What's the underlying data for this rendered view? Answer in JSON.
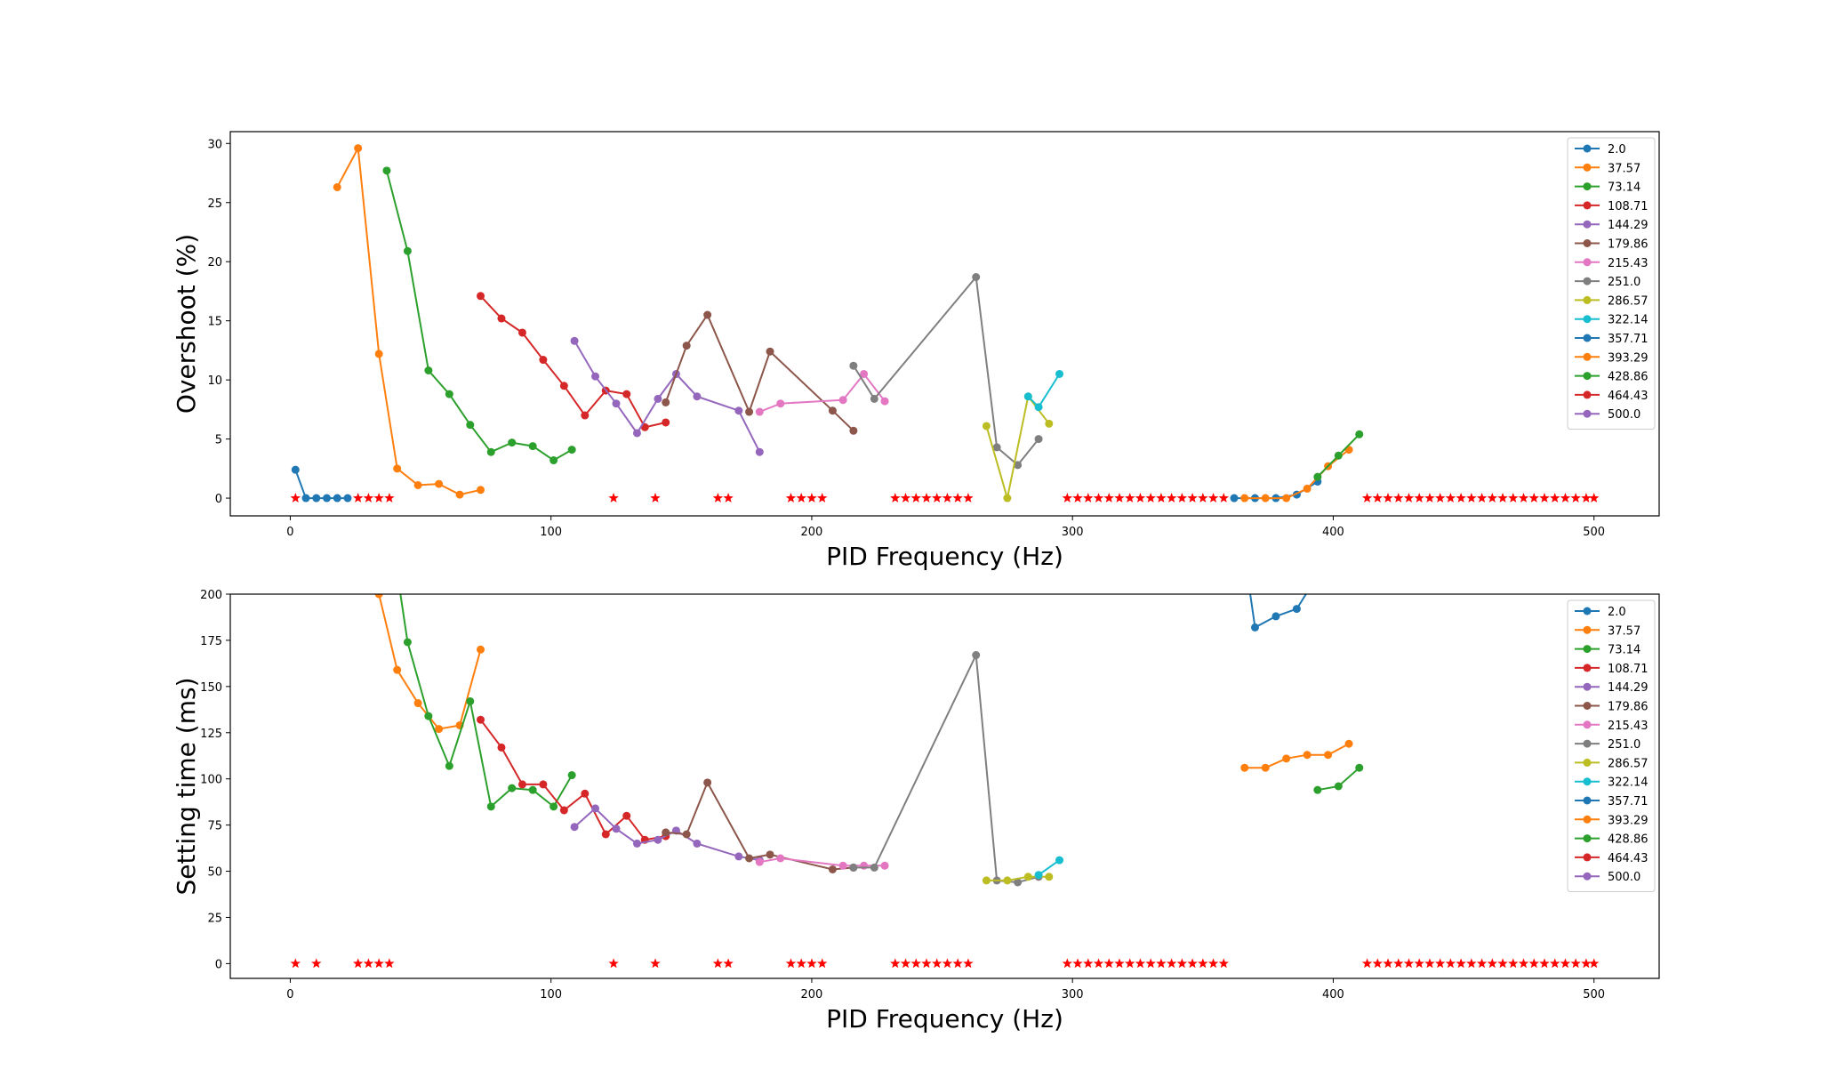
{
  "colors": [
    "#1f77b4",
    "#ff7f0e",
    "#2ca02c",
    "#d62728",
    "#9467bd",
    "#8c564b",
    "#e377c2",
    "#7f7f7f",
    "#bcbd22",
    "#17becf"
  ],
  "star_color": "#ff0000",
  "chart_data": [
    {
      "type": "line",
      "xlabel": "PID Frequency (Hz)",
      "ylabel": "Overshoot (%)",
      "xlim": [
        -23,
        525
      ],
      "ylim": [
        -1.5,
        31
      ],
      "xticks": [
        0,
        100,
        200,
        300,
        400,
        500
      ],
      "yticks": [
        0,
        5,
        10,
        15,
        20,
        25,
        30
      ],
      "legend": "top-right",
      "series": [
        {
          "name": "2.0",
          "points": [
            [
              2,
              2.4
            ],
            [
              6,
              0
            ],
            [
              10,
              0
            ],
            [
              14,
              0
            ],
            [
              18,
              0
            ],
            [
              22,
              0
            ]
          ]
        },
        {
          "name": "37.57",
          "points": [
            [
              18,
              26.3
            ],
            [
              26,
              29.6
            ],
            [
              34,
              12.2
            ],
            [
              41,
              2.5
            ],
            [
              49,
              1.1
            ],
            [
              57,
              1.2
            ],
            [
              65,
              0.3
            ],
            [
              73,
              0.7
            ]
          ]
        },
        {
          "name": "73.14",
          "points": [
            [
              37,
              27.7
            ],
            [
              45,
              20.9
            ],
            [
              53,
              10.8
            ],
            [
              61,
              8.8
            ],
            [
              69,
              6.2
            ],
            [
              77,
              3.9
            ],
            [
              85,
              4.7
            ],
            [
              93,
              4.4
            ],
            [
              101,
              3.2
            ],
            [
              108,
              4.1
            ]
          ]
        },
        {
          "name": "108.71",
          "points": [
            [
              73,
              17.1
            ],
            [
              81,
              15.2
            ],
            [
              89,
              14.0
            ],
            [
              97,
              11.7
            ],
            [
              105,
              9.5
            ],
            [
              113,
              7.0
            ],
            [
              121,
              9.1
            ],
            [
              129,
              8.8
            ],
            [
              136,
              6.0
            ],
            [
              144,
              6.4
            ]
          ]
        },
        {
          "name": "144.29",
          "points": [
            [
              109,
              13.3
            ],
            [
              117,
              10.3
            ],
            [
              125,
              8.0
            ],
            [
              133,
              5.5
            ],
            [
              141,
              8.4
            ],
            [
              148,
              10.5
            ],
            [
              156,
              8.6
            ],
            [
              172,
              7.4
            ],
            [
              180,
              3.9
            ]
          ]
        },
        {
          "name": "179.86",
          "points": [
            [
              144,
              8.1
            ],
            [
              152,
              12.9
            ],
            [
              160,
              15.5
            ],
            [
              176,
              7.3
            ],
            [
              184,
              12.4
            ],
            [
              208,
              7.4
            ],
            [
              216,
              5.7
            ]
          ]
        },
        {
          "name": "215.43",
          "points": [
            [
              180,
              7.3
            ],
            [
              188,
              8.0
            ],
            [
              212,
              8.3
            ],
            [
              220,
              10.5
            ],
            [
              228,
              8.2
            ]
          ]
        },
        {
          "name": "251.0",
          "points": [
            [
              216,
              11.2
            ],
            [
              224,
              8.4
            ],
            [
              263,
              18.7
            ],
            [
              271,
              4.3
            ],
            [
              279,
              2.8
            ],
            [
              287,
              5.0
            ]
          ]
        },
        {
          "name": "286.57",
          "points": [
            [
              267,
              6.1
            ],
            [
              275,
              0
            ],
            [
              283,
              8.6
            ],
            [
              291,
              6.3
            ]
          ]
        },
        {
          "name": "322.14",
          "points": [
            [
              283,
              8.6
            ],
            [
              287,
              7.7
            ],
            [
              295,
              10.5
            ]
          ]
        },
        {
          "name": "357.71",
          "points": [
            [
              362,
              0
            ],
            [
              370,
              0
            ],
            [
              378,
              0
            ],
            [
              386,
              0.3
            ],
            [
              394,
              1.4
            ]
          ]
        },
        {
          "name": "393.29",
          "points": [
            [
              366,
              0
            ],
            [
              374,
              0
            ],
            [
              382,
              0
            ],
            [
              390,
              0.8
            ],
            [
              398,
              2.7
            ],
            [
              406,
              4.1
            ]
          ]
        },
        {
          "name": "428.86",
          "points": [
            [
              394,
              1.8
            ],
            [
              402,
              3.6
            ],
            [
              410,
              5.4
            ]
          ]
        },
        {
          "name": "464.43",
          "points": []
        },
        {
          "name": "500.0",
          "points": []
        }
      ],
      "stars": [
        2,
        26,
        30,
        34,
        38,
        124,
        140,
        164,
        168,
        192,
        196,
        200,
        204,
        232,
        236,
        240,
        244,
        248,
        252,
        256,
        260,
        298,
        302,
        306,
        310,
        314,
        318,
        322,
        326,
        330,
        334,
        338,
        342,
        346,
        350,
        354,
        358,
        413,
        417,
        421,
        425,
        429,
        433,
        437,
        441,
        445,
        449,
        453,
        457,
        461,
        465,
        469,
        473,
        477,
        481,
        485,
        489,
        493,
        497,
        500
      ]
    },
    {
      "type": "line",
      "xlabel": "PID Frequency (Hz)",
      "ylabel": "Setting time (ms)",
      "xlim": [
        -23,
        525
      ],
      "ylim": [
        -8,
        200
      ],
      "xticks": [
        0,
        100,
        200,
        300,
        400,
        500
      ],
      "yticks": [
        0,
        25,
        50,
        75,
        100,
        125,
        150,
        175,
        200
      ],
      "legend": "top-right",
      "series": [
        {
          "name": "2.0",
          "points": []
        },
        {
          "name": "37.57",
          "points": [
            [
              26,
              250
            ],
            [
              34,
              200
            ],
            [
              41,
              159
            ],
            [
              49,
              141
            ],
            [
              57,
              127
            ],
            [
              65,
              129
            ],
            [
              73,
              170
            ]
          ]
        },
        {
          "name": "73.14",
          "points": [
            [
              37,
              250
            ],
            [
              45,
              174
            ],
            [
              53,
              134
            ],
            [
              61,
              107
            ],
            [
              69,
              142
            ],
            [
              77,
              85
            ],
            [
              85,
              95
            ],
            [
              93,
              94
            ],
            [
              101,
              85
            ],
            [
              108,
              102
            ]
          ]
        },
        {
          "name": "108.71",
          "points": [
            [
              73,
              132
            ],
            [
              81,
              117
            ],
            [
              89,
              97
            ],
            [
              97,
              97
            ],
            [
              105,
              83
            ],
            [
              113,
              92
            ],
            [
              121,
              70
            ],
            [
              129,
              80
            ],
            [
              136,
              67
            ],
            [
              144,
              69
            ]
          ]
        },
        {
          "name": "144.29",
          "points": [
            [
              109,
              74
            ],
            [
              117,
              84
            ],
            [
              125,
              73
            ],
            [
              133,
              65
            ],
            [
              141,
              67
            ],
            [
              148,
              72
            ],
            [
              156,
              65
            ],
            [
              172,
              58
            ],
            [
              180,
              56
            ]
          ]
        },
        {
          "name": "179.86",
          "points": [
            [
              144,
              71
            ],
            [
              152,
              70
            ],
            [
              160,
              98
            ],
            [
              176,
              57
            ],
            [
              184,
              59
            ],
            [
              208,
              51
            ],
            [
              216,
              52
            ]
          ]
        },
        {
          "name": "215.43",
          "points": [
            [
              180,
              55
            ],
            [
              188,
              57
            ],
            [
              212,
              53
            ],
            [
              220,
              53
            ],
            [
              228,
              53
            ]
          ]
        },
        {
          "name": "251.0",
          "points": [
            [
              216,
              52
            ],
            [
              224,
              52
            ],
            [
              263,
              167
            ],
            [
              271,
              45
            ],
            [
              279,
              44
            ],
            [
              287,
              47
            ]
          ]
        },
        {
          "name": "286.57",
          "points": [
            [
              267,
              45
            ],
            [
              275,
              45
            ],
            [
              283,
              47
            ],
            [
              291,
              47
            ]
          ]
        },
        {
          "name": "322.14",
          "points": [
            [
              287,
              48
            ],
            [
              295,
              56
            ]
          ]
        },
        {
          "name": "357.71",
          "points": [
            [
              362,
              260
            ],
            [
              370,
              182
            ],
            [
              378,
              188
            ],
            [
              386,
              192
            ],
            [
              394,
              210
            ]
          ]
        },
        {
          "name": "393.29",
          "points": [
            [
              366,
              106
            ],
            [
              374,
              106
            ],
            [
              382,
              111
            ],
            [
              390,
              113
            ],
            [
              398,
              113
            ],
            [
              406,
              119
            ]
          ]
        },
        {
          "name": "428.86",
          "points": [
            [
              394,
              94
            ],
            [
              402,
              96
            ],
            [
              410,
              106
            ]
          ]
        },
        {
          "name": "464.43",
          "points": []
        },
        {
          "name": "500.0",
          "points": []
        }
      ],
      "stars": [
        2,
        10,
        26,
        30,
        34,
        38,
        124,
        140,
        164,
        168,
        192,
        196,
        200,
        204,
        232,
        236,
        240,
        244,
        248,
        252,
        256,
        260,
        298,
        302,
        306,
        310,
        314,
        318,
        322,
        326,
        330,
        334,
        338,
        342,
        346,
        350,
        354,
        358,
        413,
        417,
        421,
        425,
        429,
        433,
        437,
        441,
        445,
        449,
        453,
        457,
        461,
        465,
        469,
        473,
        477,
        481,
        485,
        489,
        493,
        497,
        500
      ]
    }
  ]
}
